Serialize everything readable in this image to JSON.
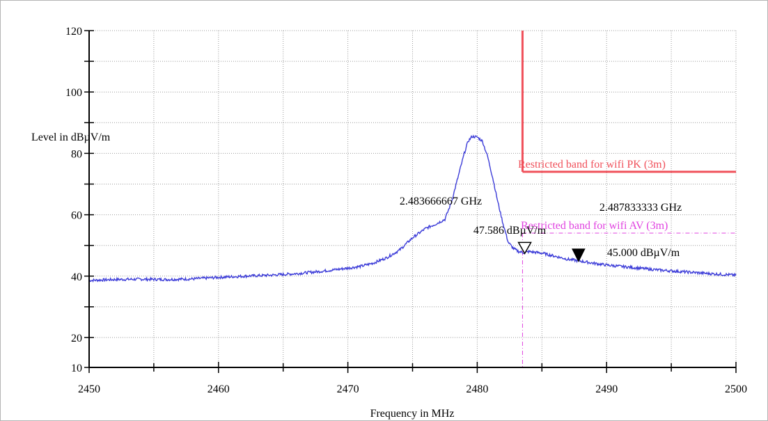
{
  "chart_data": {
    "type": "line",
    "xlabel": "Frequency in MHz",
    "ylabel": "Level in dBµV/m",
    "xlim": [
      2450,
      2500
    ],
    "ylim": [
      10,
      120
    ],
    "xticks": [
      2450,
      2460,
      2470,
      2480,
      2490,
      2500
    ],
    "yticks": [
      10,
      20,
      40,
      60,
      80,
      100,
      120
    ],
    "xtick_labels": [
      "2450",
      "2460",
      "2470",
      "2480",
      "2490",
      "2500"
    ],
    "ytick_labels": [
      "10",
      "20",
      "40",
      "60",
      "80",
      "100",
      "120"
    ],
    "grid": true,
    "colors": {
      "trace": "#3c3cd8",
      "limit_pk": "#f0505a",
      "limit_av": "#e040e0"
    },
    "series": [
      {
        "color": "#3c3cd8",
        "x": [
          2450,
          2452,
          2454,
          2456,
          2458,
          2460,
          2462,
          2464,
          2466,
          2468,
          2470,
          2471,
          2472,
          2473,
          2474,
          2475,
          2476,
          2476.8,
          2477.5,
          2478,
          2478.5,
          2479,
          2479.3,
          2479.6,
          2480,
          2480.4,
          2480.8,
          2481.2,
          2481.6,
          2482,
          2482.4,
          2482.8,
          2483.2,
          2483.67,
          2484,
          2485,
          2486,
          2487,
          2487.83,
          2489,
          2490,
          2492,
          2494,
          2496,
          2498,
          2500
        ],
        "y": [
          38.6,
          38.9,
          39.0,
          38.9,
          39.1,
          39.6,
          40.0,
          40.3,
          40.8,
          41.6,
          42.6,
          43.2,
          44.3,
          46.0,
          48.5,
          52.5,
          55.5,
          57.0,
          58.5,
          64.0,
          72.0,
          80.0,
          84.0,
          85.5,
          85.3,
          84.0,
          79.0,
          72.0,
          64.0,
          57.0,
          51.0,
          49.0,
          48.0,
          47.6,
          48.0,
          47.5,
          46.5,
          45.5,
          45.0,
          44.2,
          43.6,
          42.8,
          42.0,
          41.4,
          40.8,
          40.3
        ]
      }
    ],
    "limits": [
      {
        "label": "Restricted band for  wifi   PK (3m)",
        "start": 2483.5,
        "value": 74,
        "color": "#f0505a",
        "style": "solid"
      },
      {
        "label": "Restricted band for  wifi  AV (3m)",
        "start": 2483.5,
        "value": 54,
        "color": "#e040e0",
        "style": "dashdot"
      }
    ],
    "markers": [
      {
        "freq_label": "2.483666667 GHz",
        "level_label": "47.586 dBµV/m",
        "x": 2483.67,
        "y": 47.586,
        "style": "open"
      },
      {
        "freq_label": "2.487833333 GHz",
        "level_label": "45.000 dBµV/m",
        "x": 2487.83,
        "y": 45.0,
        "style": "filled"
      }
    ]
  }
}
